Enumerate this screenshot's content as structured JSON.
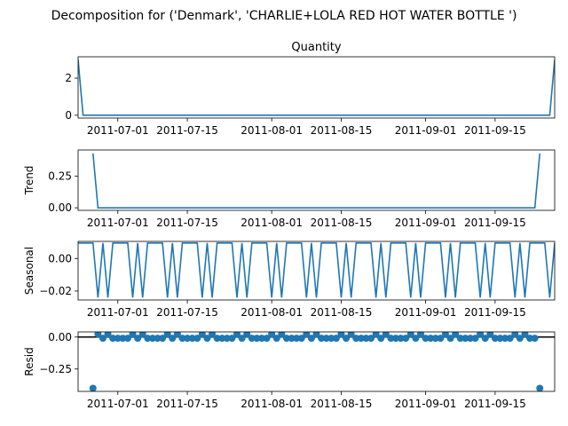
{
  "figure": {
    "suptitle": "Decomposition for ('Denmark', 'CHARLIE+LOLA RED HOT WATER BOTTLE ')",
    "series_color": "#1f77b4"
  },
  "chart_data": [
    {
      "type": "line",
      "title": "Quantity",
      "ylabel": "",
      "x_start": "2011-06-23",
      "x_end": "2011-09-27",
      "xlim": [
        "2011-06-23",
        "2011-09-27"
      ],
      "ylim": [
        -0.15,
        3.15
      ],
      "yticks": [
        0,
        2
      ],
      "ytick_labels": [
        "0",
        "2"
      ],
      "xticks": [
        "2011-07-01",
        "2011-07-15",
        "2011-08-01",
        "2011-08-15",
        "2011-09-01",
        "2011-09-15"
      ],
      "xtick_labels": [
        "2011-07-01",
        "2011-07-15",
        "2011-08-01",
        "2011-08-15",
        "2011-09-01",
        "2011-09-15"
      ],
      "grid": false,
      "points": [
        [
          "2011-06-23",
          3
        ],
        [
          "2011-06-24",
          0
        ],
        [
          "2011-09-26",
          0
        ],
        [
          "2011-09-27",
          3
        ]
      ]
    },
    {
      "type": "line",
      "title": "",
      "ylabel": "Trend",
      "xlim": [
        "2011-06-23",
        "2011-09-27"
      ],
      "ylim": [
        -0.02,
        0.455
      ],
      "yticks": [
        0,
        0.25
      ],
      "ytick_labels": [
        "0.00",
        "0.25"
      ],
      "xticks": [
        "2011-07-01",
        "2011-07-15",
        "2011-08-01",
        "2011-08-15",
        "2011-09-01",
        "2011-09-15"
      ],
      "xtick_labels": [
        "2011-07-01",
        "2011-07-15",
        "2011-08-01",
        "2011-08-15",
        "2011-09-01",
        "2011-09-15"
      ],
      "grid": false,
      "points": [
        [
          "2011-06-26",
          0.4286
        ],
        [
          "2011-06-27",
          0
        ],
        [
          "2011-09-23",
          0
        ],
        [
          "2011-09-24",
          0.4286
        ]
      ]
    },
    {
      "type": "line",
      "title": "",
      "ylabel": "Seasonal",
      "xlim": [
        "2011-06-23",
        "2011-09-27"
      ],
      "ylim": [
        -0.0255,
        0.0105
      ],
      "yticks": [
        0,
        -0.02
      ],
      "ytick_labels": [
        "0.00",
        "−0.02"
      ],
      "xticks": [
        "2011-07-01",
        "2011-07-15",
        "2011-08-01",
        "2011-08-15",
        "2011-09-01",
        "2011-09-15"
      ],
      "xtick_labels": [
        "2011-07-01",
        "2011-07-15",
        "2011-08-01",
        "2011-08-15",
        "2011-09-01",
        "2011-09-15"
      ],
      "grid": false,
      "weekly_pattern": [
        0.0095,
        0.0095,
        0.0095,
        0.0095,
        -0.024,
        0.0095,
        -0.024
      ]
    },
    {
      "type": "scatter",
      "title": "",
      "ylabel": "Resid",
      "xlim": [
        "2011-06-23",
        "2011-09-27"
      ],
      "ylim": [
        -0.425,
        0.04
      ],
      "yticks": [
        0,
        -0.25
      ],
      "ytick_labels": [
        "0.00",
        "−0.25"
      ],
      "xticks": [
        "2011-07-01",
        "2011-07-15",
        "2011-08-01",
        "2011-08-15",
        "2011-09-01",
        "2011-09-15"
      ],
      "xtick_labels": [
        "2011-07-01",
        "2011-07-15",
        "2011-08-01",
        "2011-08-15",
        "2011-09-01",
        "2011-09-15"
      ],
      "grid": false,
      "zero_line": true,
      "x_range": [
        "2011-06-26",
        "2011-09-24"
      ],
      "end_values": [
        -0.4007,
        -0.4007
      ],
      "weekly_pattern": [
        -0.0095,
        -0.0095,
        -0.0095,
        -0.0095,
        0.024,
        -0.0095,
        0.024
      ]
    }
  ]
}
